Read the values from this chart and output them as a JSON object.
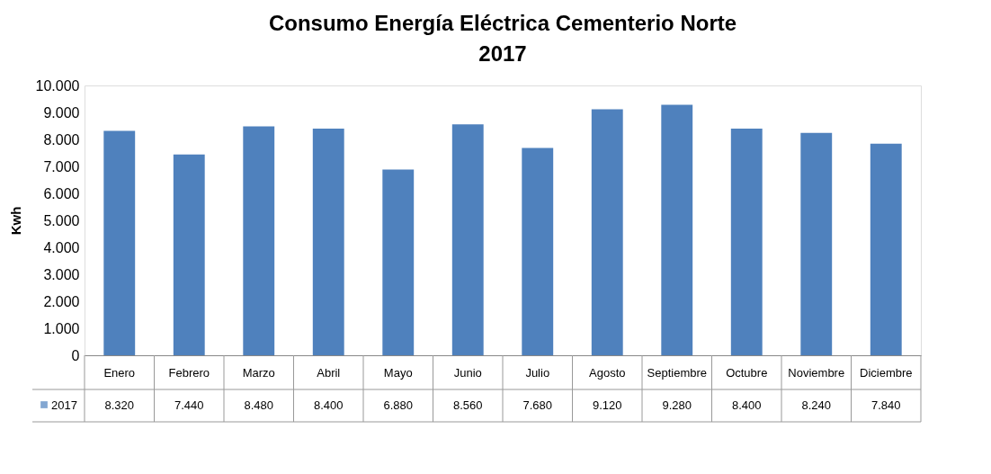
{
  "chart_data": {
    "type": "bar",
    "title": "Consumo Energía Eléctrica Cementerio Norte",
    "subtitle": "2017",
    "ylabel": "Kwh",
    "categories": [
      "Enero",
      "Febrero",
      "Marzo",
      "Abril",
      "Mayo",
      "Junio",
      "Julio",
      "Agosto",
      "Septiembre",
      "Octubre",
      "Noviembre",
      "Diciembre"
    ],
    "series": [
      {
        "name": "2017",
        "color": "#4f81bd",
        "values": [
          8320,
          7440,
          8480,
          8400,
          6880,
          8560,
          7680,
          9120,
          9280,
          8400,
          8240,
          7840
        ],
        "value_labels": [
          "8.320",
          "7.440",
          "8.480",
          "8.400",
          "6.880",
          "8.560",
          "7.680",
          "9.120",
          "9.280",
          "8.400",
          "8.240",
          "7.840"
        ]
      }
    ],
    "ylim": [
      0,
      10000
    ],
    "yticks": [
      0,
      {
        "value": 1000,
        "label": "1.000"
      },
      {
        "value": 2000,
        "label": "2.000"
      },
      {
        "value": 3000,
        "label": "3.000"
      },
      {
        "value": 4000,
        "label": "4.000"
      },
      {
        "value": 5000,
        "label": "5.000"
      },
      {
        "value": 6000,
        "label": "6.000"
      },
      {
        "value": 7000,
        "label": "7.000"
      },
      {
        "value": 8000,
        "label": "8.000"
      },
      {
        "value": 9000,
        "label": "9.000"
      },
      {
        "value": 10000,
        "label": "10.000"
      }
    ],
    "grid": false,
    "legend": "bottom"
  }
}
